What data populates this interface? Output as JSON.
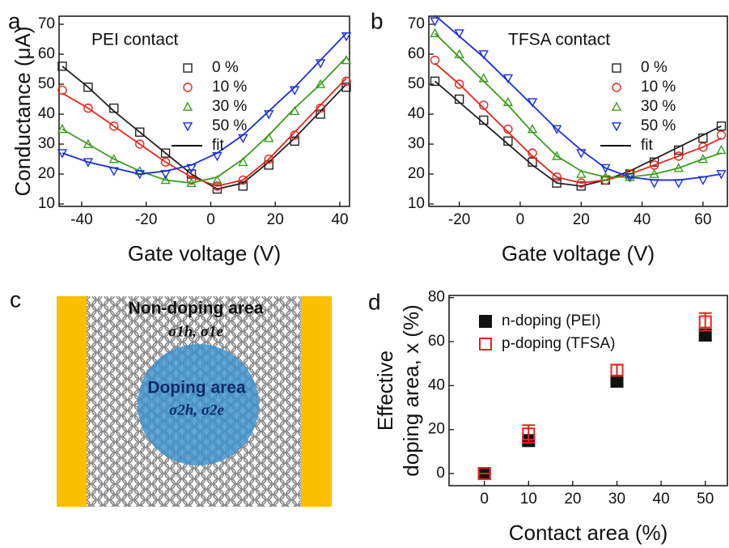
{
  "chart_data": [
    {
      "type": "scatter",
      "label": "a",
      "annotation": "PEI contact",
      "xlabel": "Gate voltage (V)",
      "ylabel": "Conductance (μA)",
      "xlim": [
        -47,
        43
      ],
      "ylim": [
        9.2,
        72.7
      ],
      "xticks": [
        -40,
        -20,
        0,
        20,
        40
      ],
      "yticks": [
        10,
        20,
        30,
        40,
        50,
        60,
        70
      ],
      "x": [
        -46,
        -38,
        -30,
        -22,
        -14,
        -6,
        2,
        10,
        18,
        26,
        34,
        42
      ],
      "fit_label": "fit",
      "series": [
        {
          "name": "0 %",
          "color": "#222222",
          "marker": "square",
          "values": [
            56,
            49,
            42,
            34,
            27,
            20,
            15,
            16,
            23,
            31,
            40,
            49
          ],
          "fit": [
            56,
            49,
            41,
            34,
            27,
            20,
            15,
            17,
            24,
            32,
            41,
            50
          ]
        },
        {
          "name": "10 %",
          "color": "#e8241c",
          "marker": "circle",
          "values": [
            48,
            42,
            36,
            30,
            24,
            18,
            16,
            18,
            25,
            33,
            42,
            51
          ],
          "fit": [
            47,
            42,
            36,
            30,
            24,
            19,
            16,
            18,
            25,
            34,
            43,
            52
          ]
        },
        {
          "name": "30 %",
          "color": "#3a9e1e",
          "marker": "triangle",
          "values": [
            35,
            30,
            25,
            21,
            18,
            17,
            18,
            24,
            32,
            41,
            50,
            58
          ],
          "fit": [
            35,
            30,
            25,
            21,
            18,
            17,
            19,
            25,
            33,
            42,
            50,
            59
          ]
        },
        {
          "name": "50 %",
          "color": "#1a2ee0",
          "marker": "triangle-down",
          "values": [
            27,
            24,
            21,
            20,
            20,
            22,
            26,
            32,
            40,
            48,
            57,
            66
          ],
          "fit": [
            27,
            24,
            22,
            20,
            21,
            23,
            27,
            33,
            41,
            49,
            58,
            67
          ]
        }
      ]
    },
    {
      "type": "scatter",
      "label": "b",
      "annotation": "TFSA contact",
      "xlabel": "Gate voltage (V)",
      "xlim": [
        -30,
        68
      ],
      "ylim": [
        9.2,
        72.7
      ],
      "xticks": [
        -20,
        0,
        20,
        40,
        60
      ],
      "yticks": [
        10,
        20,
        30,
        40,
        50,
        60,
        70
      ],
      "x": [
        -28,
        -20,
        -12,
        -4,
        4,
        12,
        20,
        28,
        36,
        44,
        52,
        60,
        66
      ],
      "fit_label": "fit",
      "series": [
        {
          "name": "0 %",
          "color": "#222222",
          "marker": "square",
          "values": [
            51,
            45,
            38,
            31,
            24,
            17,
            16,
            18,
            20,
            24,
            28,
            32,
            36
          ],
          "fit": [
            51,
            44,
            37,
            30,
            23,
            17,
            16,
            18,
            21,
            25,
            29,
            33,
            36
          ]
        },
        {
          "name": "10 %",
          "color": "#e8241c",
          "marker": "circle",
          "values": [
            58,
            50,
            43,
            35,
            27,
            19,
            17,
            18,
            20,
            23,
            26,
            29,
            33
          ],
          "fit": [
            57,
            50,
            42,
            34,
            26,
            19,
            17,
            18,
            20,
            23,
            26,
            29,
            32
          ]
        },
        {
          "name": "30 %",
          "color": "#3a9e1e",
          "marker": "triangle",
          "values": [
            67,
            60,
            52,
            44,
            35,
            26,
            20,
            19,
            19,
            20,
            22,
            25,
            28
          ],
          "fit": [
            67,
            59,
            51,
            43,
            34,
            26,
            21,
            19,
            19,
            20,
            22,
            25,
            27
          ]
        },
        {
          "name": "50 %",
          "color": "#1a2ee0",
          "marker": "triangle-down",
          "values": [
            71,
            67,
            60,
            52,
            44,
            35,
            27,
            22,
            19,
            17,
            17,
            18,
            20
          ],
          "fit": [
            73,
            66,
            59,
            51,
            43,
            35,
            28,
            22,
            19,
            18,
            18,
            19,
            20
          ]
        }
      ]
    },
    {
      "type": "errorbar",
      "label": "d",
      "xlabel": "Contact area (%)",
      "ylabel": [
        "Effective",
        "doping area, x (%)"
      ],
      "xlim": [
        -8,
        55
      ],
      "ylim": [
        -5.5,
        81
      ],
      "xticks": [
        0,
        10,
        20,
        30,
        40,
        50
      ],
      "yticks": [
        0,
        20,
        40,
        60,
        80
      ],
      "x": [
        0,
        10,
        30,
        50
      ],
      "series": [
        {
          "name": "n-doping (PEI)",
          "color": "#111111",
          "filled": true,
          "values": [
            0,
            15,
            42,
            63
          ],
          "errors": [
            0,
            1.5,
            2,
            2.5
          ]
        },
        {
          "name": "p-doping (TFSA)",
          "color": "#e8241c",
          "filled": false,
          "values": [
            0,
            18,
            47,
            69
          ],
          "errors": [
            0,
            4,
            2.5,
            4
          ]
        }
      ]
    }
  ],
  "panel_c": {
    "label": "c",
    "top_text": "Non-doping area",
    "top_sigma": "σ1h, σ1e",
    "center_text": "Doping area",
    "center_sigma": "σ2h, σ2e"
  }
}
